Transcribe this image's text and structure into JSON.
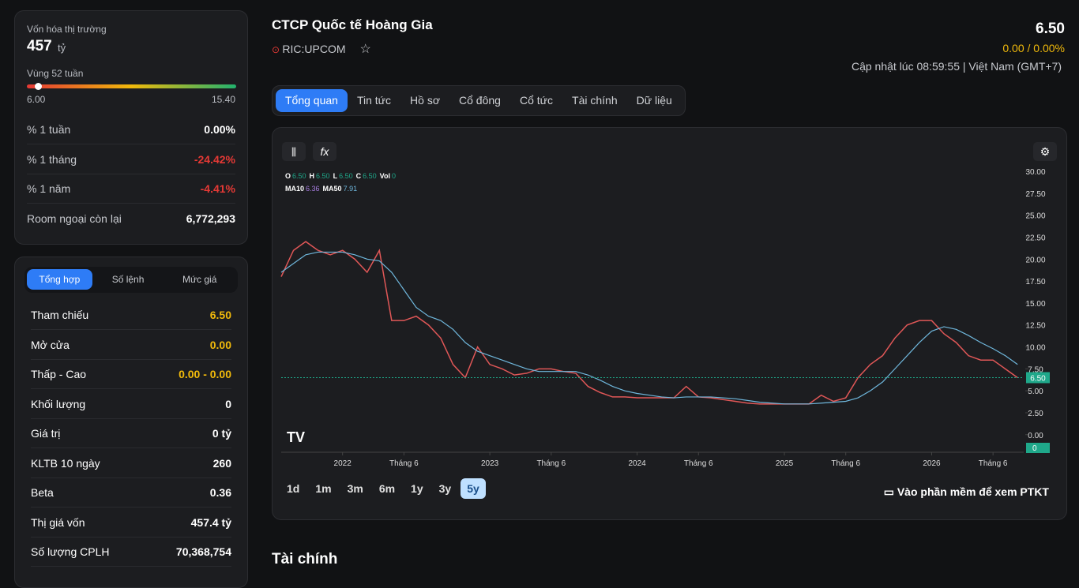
{
  "left": {
    "market_cap_label": "Vốn hóa thị trường",
    "market_cap": "457",
    "market_cap_unit": "tỷ",
    "range_label": "Vùng 52 tuần",
    "range_low": "6.00",
    "range_high": "15.40",
    "stats": [
      {
        "label": "% 1 tuần",
        "value": "0.00%",
        "color": "#ffffff"
      },
      {
        "label": "% 1 tháng",
        "value": "-24.42%",
        "color": "#e53935"
      },
      {
        "label": "% 1 năm",
        "value": "-4.41%",
        "color": "#e53935"
      },
      {
        "label": "Room ngoại còn lại",
        "value": "6,772,293",
        "color": "#ffffff"
      }
    ]
  },
  "summary": {
    "tabs": [
      "Tổng hợp",
      "Số lệnh",
      "Mức giá"
    ],
    "rows": [
      {
        "label": "Tham chiếu",
        "value": "6.50",
        "color": "#f0b90b"
      },
      {
        "label": "Mở cửa",
        "value": "0.00",
        "color": "#f0b90b"
      },
      {
        "label": "Thấp - Cao",
        "value": "0.00 - 0.00",
        "color": "#f0b90b"
      },
      {
        "label": "Khối lượng",
        "value": "0",
        "color": "#ffffff"
      },
      {
        "label": "Giá trị",
        "value": "0 tỷ",
        "color": "#ffffff"
      },
      {
        "label": "KLTB 10 ngày",
        "value": "260",
        "color": "#ffffff"
      },
      {
        "label": "Beta",
        "value": "0.36",
        "color": "#ffffff"
      },
      {
        "label": "Thị giá vốn",
        "value": "457.4 tỷ",
        "color": "#ffffff"
      },
      {
        "label": "Số lượng CPLH",
        "value": "70,368,754",
        "color": "#ffffff"
      }
    ]
  },
  "header": {
    "title": "CTCP Quốc tế Hoàng Gia",
    "ticker": "RIC:UPCOM",
    "price": "6.50",
    "change": "0.00 / 0.00%",
    "updated": "Cập nhật lúc 08:59:55 | Việt Nam (GMT+7)"
  },
  "tabs": [
    "Tổng quan",
    "Tin tức",
    "Hồ sơ",
    "Cổ đông",
    "Cổ tức",
    "Tài chính",
    "Dữ liệu"
  ],
  "periods": [
    "1d",
    "1m",
    "3m",
    "6m",
    "1y",
    "3y",
    "5y"
  ],
  "ptkt": "Vào phần mềm để xem PTKT",
  "section_title": "Tài chính",
  "chart_data": {
    "type": "line",
    "legend_ohlc": [
      {
        "label": "O",
        "value": "6.50"
      },
      {
        "label": "H",
        "value": "6.50"
      },
      {
        "label": "L",
        "value": "6.50"
      },
      {
        "label": "C",
        "value": "6.50"
      },
      {
        "label": "Vol",
        "value": "0"
      }
    ],
    "legend_ma": [
      {
        "label": "MA10",
        "value": "6.36"
      },
      {
        "label": "MA50",
        "value": "7.91"
      }
    ],
    "color": "#e05757",
    "values": [
      18,
      21,
      22,
      21,
      20.5,
      21,
      20,
      18.5,
      21,
      13,
      13,
      13.5,
      12.5,
      11,
      8,
      6.5,
      10,
      8,
      7.5,
      6.8,
      7,
      7.5,
      7.5,
      7.2,
      7,
      5.5,
      4.8,
      4.3,
      4.3,
      4.2,
      4.2,
      4.2,
      4.2,
      5.5,
      4.3,
      4.2,
      4,
      3.8,
      3.6,
      3.5,
      3.5,
      3.5,
      3.5,
      3.5,
      4.5,
      3.8,
      4.2,
      6.5,
      8,
      9,
      11,
      12.5,
      13,
      13,
      11.5,
      10.5,
      9,
      8.5,
      8.5,
      7.5,
      6.5
    ],
    "series": [
      {
        "name": "MA50",
        "color": "#6fb7dc",
        "values": [
          18.5,
          19.5,
          20.5,
          20.8,
          20.8,
          20.8,
          20.5,
          20,
          19.8,
          18.5,
          16.5,
          14.5,
          13.5,
          13,
          12,
          10.5,
          9.5,
          9,
          8.5,
          8,
          7.5,
          7.2,
          7.2,
          7.2,
          7.2,
          6.8,
          6.2,
          5.5,
          5,
          4.7,
          4.5,
          4.3,
          4.2,
          4.3,
          4.3,
          4.3,
          4.2,
          4.1,
          3.9,
          3.7,
          3.6,
          3.5,
          3.5,
          3.5,
          3.6,
          3.7,
          3.8,
          4.2,
          5,
          6,
          7.5,
          9,
          10.5,
          11.8,
          12.3,
          12,
          11.3,
          10.5,
          9.8,
          9,
          8
        ]
      }
    ],
    "last": {
      "value": 6.5,
      "label": "6.50"
    },
    "last_volume": 0,
    "xlim": [
      0,
      60.5
    ],
    "xticks": [
      {
        "value": 5,
        "label": "2022"
      },
      {
        "value": 10,
        "label": "Tháng 6"
      },
      {
        "value": 17,
        "label": "2023"
      },
      {
        "value": 22,
        "label": "Tháng 6"
      },
      {
        "value": 29,
        "label": "2024"
      },
      {
        "value": 34,
        "label": "Tháng 6"
      },
      {
        "value": 41,
        "label": "2025"
      },
      {
        "value": 46,
        "label": "Tháng 6"
      },
      {
        "value": 53,
        "label": "2026"
      },
      {
        "value": 58,
        "label": "Tháng 6"
      }
    ],
    "ylim": [
      -2,
      31
    ],
    "yticks": [
      {
        "value": 30,
        "label": "30.00"
      },
      {
        "value": 27.5,
        "label": "27.50"
      },
      {
        "value": 25,
        "label": "25.00"
      },
      {
        "value": 22.5,
        "label": "22.50"
      },
      {
        "value": 20,
        "label": "20.00"
      },
      {
        "value": 17.5,
        "label": "17.50"
      },
      {
        "value": 15,
        "label": "15.00"
      },
      {
        "value": 12.5,
        "label": "12.50"
      },
      {
        "value": 10,
        "label": "10.00"
      },
      {
        "value": 7.5,
        "label": "7.50"
      },
      {
        "value": 5,
        "label": "5.00"
      },
      {
        "value": 2.5,
        "label": "2.50"
      },
      {
        "value": 0,
        "label": "0.00"
      }
    ]
  }
}
